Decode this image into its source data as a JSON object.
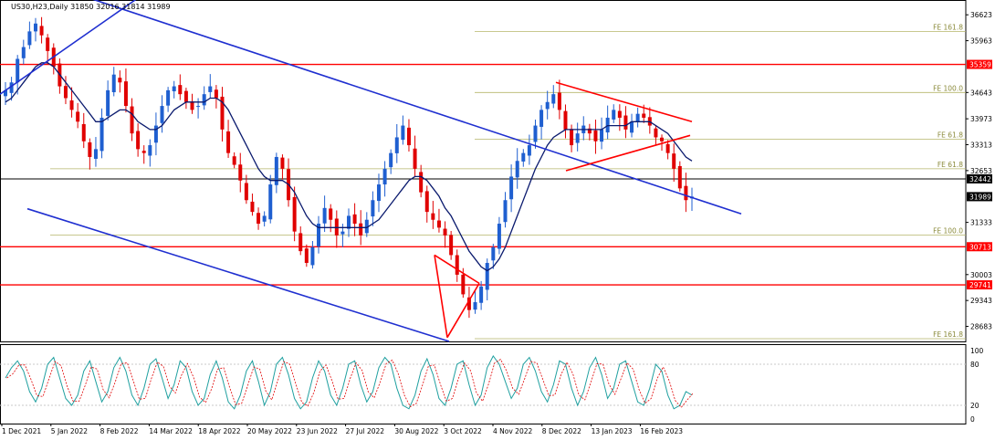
{
  "chart_data": {
    "type": "candlestick",
    "title": "US30,H23,Daily  31850 32016 31814 31989",
    "symbol": "US30,H23,Daily",
    "ohlc": {
      "open": 31850,
      "high": 32016,
      "low": 31814,
      "close": 31989
    },
    "price_axis": {
      "range": [
        28300,
        37000
      ],
      "ticks": [
        36623,
        35963,
        34643,
        33973,
        33313,
        32653,
        31333,
        30003,
        29343,
        28683
      ]
    },
    "price_badges": [
      {
        "value": 35359,
        "label": "35359",
        "color": "#ff0000"
      },
      {
        "value": 32442,
        "label": "32442",
        "color": "#000000"
      },
      {
        "value": 31989,
        "label": "31989",
        "color": "#000000"
      },
      {
        "value": 30713,
        "label": "30713",
        "color": "#ff0000"
      },
      {
        "value": 29741,
        "label": "29741",
        "color": "#ff0000"
      }
    ],
    "horizontal_lines": [
      {
        "value": 35359,
        "color": "#ff0000"
      },
      {
        "value": 32442,
        "color": "#000000"
      },
      {
        "value": 30713,
        "color": "#ff0000"
      },
      {
        "value": 29741,
        "color": "#ff0000"
      }
    ],
    "fibo_levels": [
      {
        "value": 36200,
        "label": "FE 161.8"
      },
      {
        "value": 34643,
        "label": "FE 100.0"
      },
      {
        "value": 33450,
        "label": "FE 61.8"
      },
      {
        "value": 32700,
        "label": "FE 61.8"
      },
      {
        "value": 31010,
        "label": "FE 100.0"
      },
      {
        "value": 28370,
        "label": "FE 161.8"
      }
    ],
    "date_axis": {
      "labels": [
        "1 Dec 2021",
        "5 Jan 2022",
        "8 Feb 2022",
        "14 Mar 2022",
        "18 Apr 2022",
        "20 May 2022",
        "23 Jun 2022",
        "27 Jul 2022",
        "30 Aug 2022",
        "3 Oct 2022",
        "4 Nov 2022",
        "8 Dec 2022",
        "13 Jan 2023",
        "16 Feb 2023"
      ]
    },
    "oscillator": {
      "ticks": [
        100,
        80,
        20,
        0
      ]
    },
    "close_series": [
      34700,
      34900,
      35500,
      35800,
      36200,
      36400,
      36100,
      35700,
      35300,
      34800,
      34500,
      34200,
      33900,
      33400,
      33000,
      33200,
      34000,
      34700,
      35100,
      34900,
      34300,
      33600,
      33200,
      33100,
      33300,
      33800,
      34300,
      34700,
      34800,
      34600,
      34400,
      34200,
      34300,
      34600,
      34800,
      34500,
      33700,
      33100,
      32800,
      32400,
      31900,
      31600,
      31300,
      31500,
      32300,
      33000,
      32700,
      31900,
      31100,
      30600,
      30300,
      30700,
      31300,
      31700,
      31400,
      31000,
      31100,
      31500,
      31300,
      31000,
      31400,
      31900,
      32300,
      32700,
      33100,
      33500,
      33800,
      33300,
      32700,
      32100,
      31600,
      31400,
      31200,
      31000,
      30500,
      30000,
      29500,
      29100,
      29300,
      29700,
      30300,
      30700,
      31300,
      31900,
      32500,
      32900,
      33100,
      33300,
      33800,
      34200,
      34400,
      34600,
      34200,
      33700,
      33300,
      33600,
      33800,
      33600,
      33400,
      33700,
      34000,
      34200,
      34000,
      33700,
      33900,
      34100,
      34000,
      33800,
      33500,
      33400,
      33100,
      32700,
      32200,
      31900,
      31989
    ],
    "ma_series": [
      34400,
      34500,
      34700,
      34900,
      35100,
      35300,
      35400,
      35400,
      35300,
      35100,
      34900,
      34700,
      34500,
      34300,
      34100,
      33900,
      33900,
      34000,
      34100,
      34200,
      34200,
      34100,
      33900,
      33800,
      33700,
      33700,
      33800,
      34000,
      34200,
      34300,
      34400,
      34400,
      34400,
      34400,
      34500,
      34500,
      34400,
      34200,
      33900,
      33600,
      33300,
      33000,
      32700,
      32500,
      32400,
      32400,
      32400,
      32300,
      32100,
      31800,
      31500,
      31300,
      31200,
      31200,
      31200,
      31200,
      31200,
      31200,
      31200,
      31200,
      31200,
      31300,
      31400,
      31600,
      31800,
      32000,
      32200,
      32400,
      32500,
      32500,
      32400,
      32200,
      32000,
      31700,
      31500,
      31200,
      30900,
      30600,
      30400,
      30200,
      30100,
      30200,
      30400,
      30700,
      31100,
      31500,
      31900,
      32300,
      32700,
      33000,
      33300,
      33500,
      33600,
      33700,
      33700,
      33700,
      33700,
      33700,
      33700,
      33700,
      33800,
      33800,
      33800,
      33800,
      33900,
      33900,
      33900,
      33900,
      33800,
      33700,
      33600,
      33400,
      33200,
      33000,
      32900
    ],
    "stoch_series": [
      60,
      75,
      85,
      70,
      40,
      25,
      45,
      80,
      90,
      60,
      30,
      20,
      35,
      70,
      85,
      55,
      25,
      40,
      75,
      90,
      70,
      35,
      20,
      45,
      80,
      88,
      60,
      30,
      50,
      85,
      75,
      40,
      20,
      30,
      65,
      85,
      60,
      25,
      15,
      35,
      70,
      85,
      55,
      20,
      40,
      80,
      90,
      65,
      30,
      15,
      25,
      60,
      85,
      70,
      35,
      20,
      45,
      80,
      85,
      50,
      25,
      40,
      75,
      90,
      80,
      45,
      20,
      15,
      35,
      70,
      88,
      65,
      30,
      20,
      45,
      80,
      85,
      50,
      20,
      35,
      75,
      92,
      80,
      55,
      30,
      45,
      80,
      90,
      70,
      40,
      25,
      50,
      85,
      80,
      45,
      20,
      40,
      75,
      90,
      65,
      30,
      45,
      80,
      85,
      55,
      25,
      20,
      45,
      80,
      70,
      35,
      15,
      20,
      40,
      35
    ],
    "trendlines": [
      {
        "name": "",
        "color": "#1f2fd0",
        "points": [
          [
            0,
            37800
          ],
          [
            812,
            31550
          ]
        ]
      },
      {
        "name": "",
        "color": "#1f2fd0",
        "points": [
          [
            30,
            31680
          ],
          [
            492,
            28300
          ]
        ]
      },
      {
        "name": "",
        "color": "#1f2fd0",
        "points": [
          [
            0,
            34600
          ],
          [
            185,
            37600
          ]
        ]
      },
      {
        "name": "",
        "color": "#ff0000",
        "points": [
          [
            609,
            34900
          ],
          [
            758,
            33900
          ]
        ]
      },
      {
        "name": "",
        "color": "#ff0000",
        "points": [
          [
            620,
            32650
          ],
          [
            756,
            33550
          ]
        ]
      },
      {
        "name": "",
        "color": "#ff0000",
        "points": [
          [
            476,
            30500
          ],
          [
            525,
            29780
          ]
        ]
      },
      {
        "name": "",
        "color": "#ff0000",
        "points": [
          [
            490,
            28400
          ],
          [
            525,
            29780
          ]
        ]
      },
      {
        "name": "",
        "color": "#ff0000",
        "points": [
          [
            476,
            30500
          ],
          [
            490,
            28400
          ]
        ]
      }
    ]
  }
}
